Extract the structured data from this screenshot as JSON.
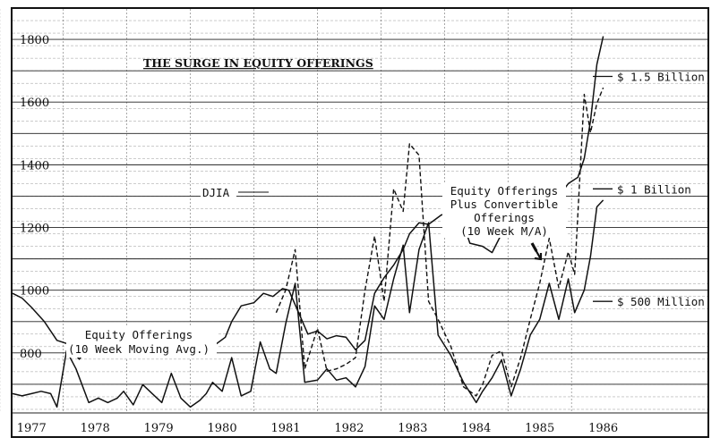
{
  "chart_data": {
    "type": "line",
    "title": "THE SURGE IN EQUITY OFFERINGS",
    "x_ticks": [
      "1977",
      "1978",
      "1979",
      "1980",
      "1981",
      "1982",
      "1983",
      "1984",
      "1985",
      "1986"
    ],
    "xlim": [
      1976.7,
      1986.4
    ],
    "y_ticks_left": [
      800,
      1000,
      1200,
      1400,
      1600,
      1800
    ],
    "ylim_left": [
      600,
      1900
    ],
    "right_axis_labels": [
      {
        "text": "$ 1.5 Billion",
        "value": 1.5
      },
      {
        "text": "$ 1 Billion",
        "value": 1.0
      },
      {
        "text": "$ 500 Million",
        "value": 0.5
      }
    ],
    "ylim_right": [
      0.0,
      1.8
    ],
    "grid": true,
    "series": [
      {
        "name": "DJIA",
        "axis": "left",
        "style": "solid",
        "x": [
          1976.7,
          1976.85,
          1977.0,
          1977.2,
          1977.4,
          1977.55,
          1977.75,
          1977.9,
          1978.1,
          1978.25,
          1978.45,
          1978.6,
          1978.8,
          1978.95,
          1979.1,
          1979.3,
          1979.5,
          1979.7,
          1979.85,
          1980.05,
          1980.15,
          1980.3,
          1980.5,
          1980.65,
          1980.8,
          1980.95,
          1981.05,
          1981.2,
          1981.35,
          1981.5,
          1981.65,
          1981.8,
          1981.95,
          1982.1,
          1982.25,
          1982.4,
          1982.55,
          1982.7,
          1982.85,
          1982.95,
          1983.1,
          1983.25,
          1983.45,
          1983.55,
          1983.75,
          1983.9,
          1984.1,
          1984.25,
          1984.4,
          1984.55,
          1984.75,
          1984.9,
          1985.1,
          1985.3,
          1985.45,
          1985.6,
          1985.7,
          1985.8,
          1985.9,
          1986.0
        ],
        "values": [
          990,
          975,
          945,
          900,
          840,
          830,
          780,
          820,
          855,
          850,
          870,
          845,
          840,
          870,
          855,
          860,
          840,
          855,
          820,
          850,
          900,
          950,
          960,
          990,
          980,
          1005,
          1000,
          930,
          860,
          870,
          845,
          855,
          850,
          810,
          840,
          990,
          1040,
          1080,
          1130,
          1180,
          1215,
          1210,
          1240,
          1245,
          1240,
          1150,
          1140,
          1120,
          1180,
          1185,
          1210,
          1240,
          1280,
          1300,
          1340,
          1360,
          1420,
          1540,
          1720,
          1810
        ]
      },
      {
        "name": "Equity Offerings (10 Week Moving Avg.)",
        "axis": "right",
        "style": "solid",
        "x": [
          1976.7,
          1976.85,
          1977.0,
          1977.15,
          1977.3,
          1977.4,
          1977.55,
          1977.7,
          1977.9,
          1978.05,
          1978.2,
          1978.35,
          1978.45,
          1978.6,
          1978.75,
          1978.9,
          1979.05,
          1979.2,
          1979.35,
          1979.5,
          1979.65,
          1979.75,
          1979.85,
          1980.0,
          1980.15,
          1980.3,
          1980.45,
          1980.6,
          1980.75,
          1980.85,
          1981.0,
          1981.15,
          1981.3,
          1981.5,
          1981.65,
          1981.8,
          1981.95,
          1982.1,
          1982.25,
          1982.4,
          1982.55,
          1982.7,
          1982.85,
          1982.95,
          1983.1,
          1983.25,
          1983.4,
          1983.6,
          1983.8,
          1984.0,
          1984.1,
          1984.25,
          1984.4,
          1984.55,
          1984.7,
          1984.85,
          1985.0,
          1985.15,
          1985.3,
          1985.45,
          1985.55,
          1985.7,
          1985.8,
          1985.9,
          1986.0
        ],
        "values": [
          0.09,
          0.08,
          0.09,
          0.1,
          0.09,
          0.03,
          0.28,
          0.2,
          0.05,
          0.07,
          0.05,
          0.07,
          0.1,
          0.04,
          0.13,
          0.09,
          0.05,
          0.18,
          0.07,
          0.03,
          0.06,
          0.09,
          0.14,
          0.1,
          0.25,
          0.08,
          0.1,
          0.32,
          0.2,
          0.18,
          0.4,
          0.58,
          0.14,
          0.15,
          0.2,
          0.15,
          0.16,
          0.12,
          0.21,
          0.48,
          0.42,
          0.6,
          0.75,
          0.45,
          0.73,
          0.85,
          0.35,
          0.26,
          0.14,
          0.05,
          0.1,
          0.16,
          0.24,
          0.08,
          0.2,
          0.35,
          0.42,
          0.58,
          0.42,
          0.6,
          0.45,
          0.55,
          0.7,
          0.92,
          0.95
        ]
      },
      {
        "name": "Equity Offerings Plus Convertible Offerings (10 Week M/A)",
        "axis": "right",
        "style": "dashed",
        "x": [
          1980.85,
          1981.0,
          1981.15,
          1981.3,
          1981.5,
          1981.65,
          1981.8,
          1981.95,
          1982.1,
          1982.25,
          1982.4,
          1982.55,
          1982.7,
          1982.85,
          1982.95,
          1983.1,
          1983.25,
          1983.4,
          1983.6,
          1983.8,
          1984.0,
          1984.1,
          1984.25,
          1984.4,
          1984.55,
          1984.7,
          1984.85,
          1985.0,
          1985.15,
          1985.3,
          1985.45,
          1985.55,
          1985.7,
          1985.8,
          1985.9,
          1986.0
        ],
        "values": [
          0.45,
          0.55,
          0.73,
          0.2,
          0.38,
          0.19,
          0.2,
          0.22,
          0.25,
          0.55,
          0.79,
          0.5,
          1.0,
          0.9,
          1.2,
          1.15,
          0.5,
          0.42,
          0.3,
          0.12,
          0.08,
          0.13,
          0.26,
          0.28,
          0.12,
          0.25,
          0.42,
          0.58,
          0.78,
          0.56,
          0.72,
          0.62,
          1.42,
          1.25,
          1.38,
          1.45
        ]
      }
    ],
    "annotations": [
      {
        "text": "DJIA"
      },
      {
        "text": [
          "Equity Offerings",
          "Plus Convertible",
          "Offerings",
          "(10 Week M/A)"
        ]
      },
      {
        "text": [
          "Equity Offerings",
          "(10 Week Moving Avg.)"
        ]
      }
    ]
  }
}
